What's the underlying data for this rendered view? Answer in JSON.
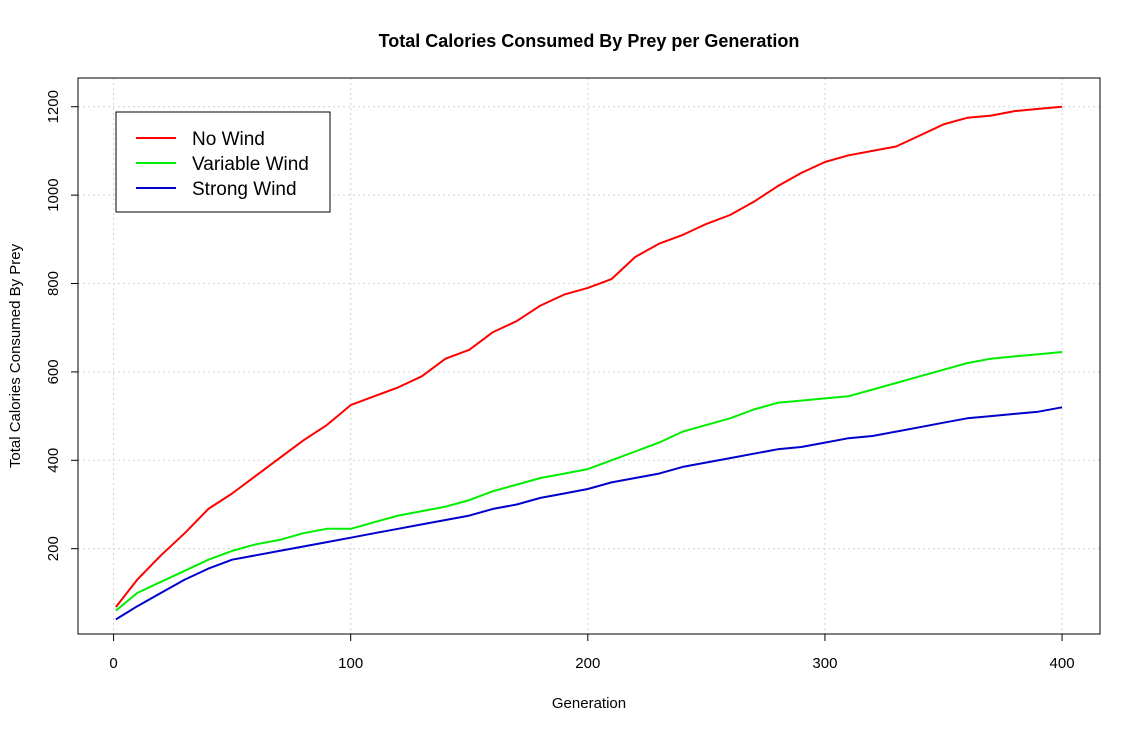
{
  "chart_data": {
    "type": "line",
    "title": "Total Calories Consumed By Prey per Generation",
    "xlabel": "Generation",
    "ylabel": "Total Calories Consumed By Prey",
    "xlim": [
      -15,
      416
    ],
    "ylim": [
      7,
      1265
    ],
    "x_ticks": [
      0,
      100,
      200,
      300,
      400
    ],
    "y_ticks": [
      200,
      400,
      600,
      800,
      1000,
      1200
    ],
    "grid": true,
    "legend_position": "top-left",
    "series": [
      {
        "name": "No Wind",
        "color": "#ff0000",
        "x": [
          1,
          10,
          20,
          30,
          40,
          50,
          60,
          70,
          80,
          90,
          100,
          110,
          120,
          130,
          140,
          150,
          160,
          170,
          180,
          190,
          200,
          210,
          220,
          230,
          240,
          250,
          260,
          270,
          280,
          290,
          300,
          310,
          320,
          330,
          340,
          350,
          360,
          370,
          380,
          390,
          400
        ],
        "values": [
          68,
          130,
          185,
          235,
          290,
          325,
          365,
          405,
          445,
          480,
          525,
          545,
          565,
          590,
          630,
          650,
          690,
          715,
          750,
          775,
          790,
          810,
          860,
          890,
          910,
          935,
          955,
          985,
          1020,
          1050,
          1075,
          1090,
          1100,
          1110,
          1135,
          1160,
          1175,
          1180,
          1190,
          1195,
          1200
        ]
      },
      {
        "name": "Variable Wind",
        "color": "#00ee00",
        "x": [
          1,
          10,
          20,
          30,
          40,
          50,
          60,
          70,
          80,
          90,
          100,
          110,
          120,
          130,
          140,
          150,
          160,
          170,
          180,
          190,
          200,
          210,
          220,
          230,
          240,
          250,
          260,
          270,
          280,
          290,
          300,
          310,
          320,
          330,
          340,
          350,
          360,
          370,
          380,
          390,
          400
        ],
        "values": [
          60,
          100,
          125,
          150,
          175,
          195,
          210,
          220,
          235,
          245,
          245,
          260,
          275,
          285,
          295,
          310,
          330,
          345,
          360,
          370,
          380,
          400,
          420,
          440,
          465,
          480,
          495,
          515,
          530,
          535,
          540,
          545,
          560,
          575,
          590,
          605,
          620,
          630,
          635,
          640,
          645
        ]
      },
      {
        "name": "Strong Wind",
        "color": "#0000cc",
        "x": [
          1,
          10,
          20,
          30,
          40,
          50,
          60,
          70,
          80,
          90,
          100,
          110,
          120,
          130,
          140,
          150,
          160,
          170,
          180,
          190,
          200,
          210,
          220,
          230,
          240,
          250,
          260,
          270,
          280,
          290,
          300,
          310,
          320,
          330,
          340,
          350,
          360,
          370,
          380,
          390,
          400
        ],
        "values": [
          40,
          70,
          100,
          130,
          155,
          175,
          185,
          195,
          205,
          215,
          225,
          235,
          245,
          255,
          265,
          275,
          290,
          300,
          315,
          325,
          335,
          350,
          360,
          370,
          385,
          395,
          405,
          415,
          425,
          430,
          440,
          450,
          455,
          465,
          475,
          485,
          495,
          500,
          505,
          510,
          520
        ]
      }
    ]
  }
}
